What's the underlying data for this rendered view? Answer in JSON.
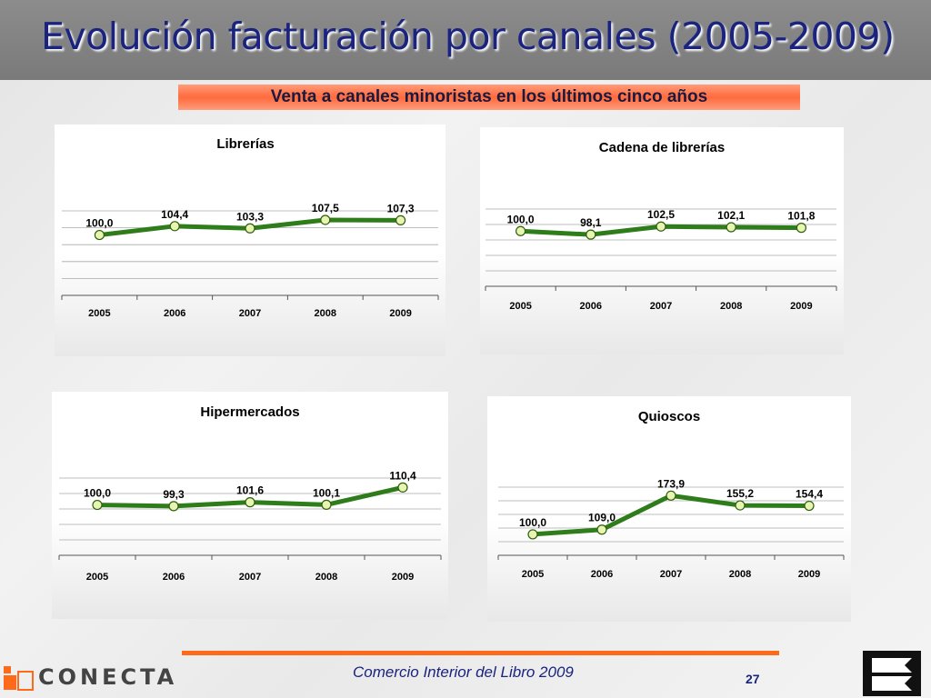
{
  "header": {
    "title": "Evolución facturación por canales (2005-2009)"
  },
  "subtitle": "Venta a canales minoristas en los últimos cinco años",
  "chart_data": [
    {
      "type": "line",
      "title": "Librerías",
      "categories": [
        "2005",
        "2006",
        "2007",
        "2008",
        "2009"
      ],
      "values": [
        100.0,
        104.4,
        103.3,
        107.5,
        107.3
      ],
      "labels": [
        "100,0",
        "104,4",
        "103,3",
        "107,5",
        "107,3"
      ],
      "line_color": "#2e7d1a",
      "marker_color": "#e8f5b0",
      "grid": true
    },
    {
      "type": "line",
      "title": "Cadena de librerías",
      "categories": [
        "2005",
        "2006",
        "2007",
        "2008",
        "2009"
      ],
      "values": [
        100.0,
        98.1,
        102.5,
        102.1,
        101.8
      ],
      "labels": [
        "100,0",
        "98,1",
        "102,5",
        "102,1",
        "101,8"
      ],
      "line_color": "#2e7d1a",
      "marker_color": "#e8f5b0",
      "grid": true
    },
    {
      "type": "line",
      "title": "Hipermercados",
      "categories": [
        "2005",
        "2006",
        "2007",
        "2008",
        "2009"
      ],
      "values": [
        100.0,
        99.3,
        101.6,
        100.1,
        110.4
      ],
      "labels": [
        "100,0",
        "99,3",
        "101,6",
        "100,1",
        "110,4"
      ],
      "line_color": "#2e7d1a",
      "marker_color": "#e8f5b0",
      "grid": true
    },
    {
      "type": "line",
      "title": "Quioscos",
      "categories": [
        "2005",
        "2006",
        "2007",
        "2008",
        "2009"
      ],
      "values": [
        100.0,
        109.0,
        173.9,
        155.2,
        154.4
      ],
      "labels": [
        "100,0",
        "109,0",
        "173,9",
        "155,2",
        "154,4"
      ],
      "line_color": "#2e7d1a",
      "marker_color": "#e8f5b0",
      "grid": true
    }
  ],
  "footer": {
    "text": "Comercio Interior del Libro 2009",
    "page": "27",
    "logo": "CONECTA",
    "accent": "#ff6a1a"
  }
}
